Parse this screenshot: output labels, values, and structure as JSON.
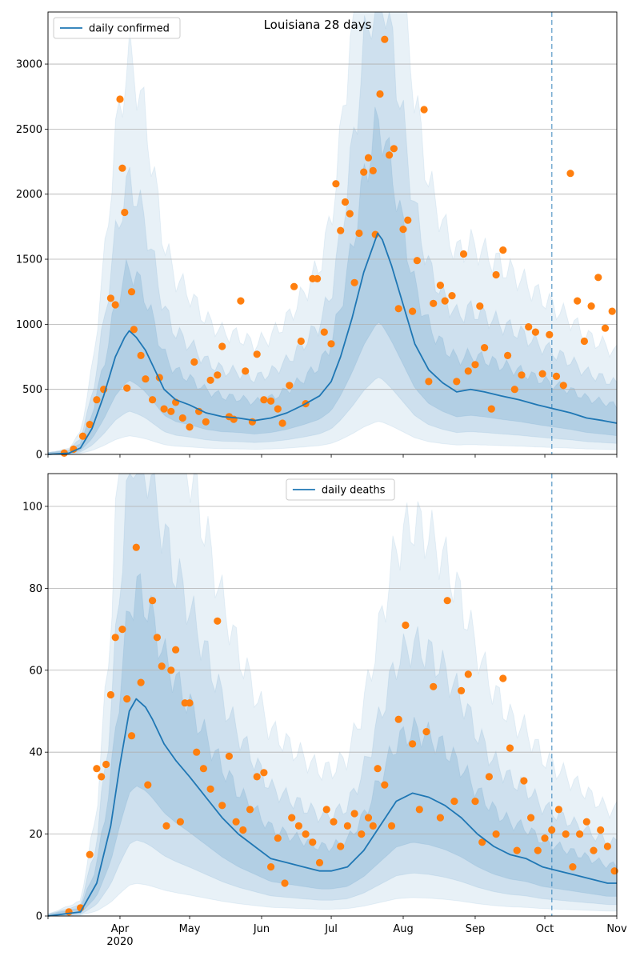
{
  "chart_data": [
    {
      "type": "line",
      "title": "Louisiana 28 days",
      "xlabel": "",
      "ylabel": "",
      "ylim": [
        0,
        3400
      ],
      "yticks": [
        0,
        500,
        1000,
        1500,
        2000,
        2500,
        3000
      ],
      "xlim": [
        "2020-03-01",
        "2020-11-01"
      ],
      "xtick_labels": [],
      "grid": "horizontal",
      "legend": {
        "placement": "top-left",
        "entries": [
          "daily confirmed"
        ]
      },
      "forecast_start": "2020-10-04",
      "colors": {
        "line": "#1f77b4",
        "points": "#ff7f0e",
        "band": "#1f77b4",
        "forecast_line": "#1f77b4"
      },
      "series": [
        {
          "name": "daily confirmed",
          "kind": "line",
          "x": [
            "2020-03-01",
            "2020-03-10",
            "2020-03-15",
            "2020-03-20",
            "2020-03-25",
            "2020-03-30",
            "2020-04-03",
            "2020-04-05",
            "2020-04-08",
            "2020-04-12",
            "2020-04-16",
            "2020-04-20",
            "2020-04-25",
            "2020-05-01",
            "2020-05-08",
            "2020-05-15",
            "2020-05-22",
            "2020-05-29",
            "2020-06-05",
            "2020-06-12",
            "2020-06-19",
            "2020-06-26",
            "2020-07-01",
            "2020-07-05",
            "2020-07-10",
            "2020-07-15",
            "2020-07-19",
            "2020-07-21",
            "2020-07-23",
            "2020-07-27",
            "2020-08-01",
            "2020-08-06",
            "2020-08-12",
            "2020-08-18",
            "2020-08-24",
            "2020-08-30",
            "2020-09-05",
            "2020-09-12",
            "2020-09-20",
            "2020-09-28",
            "2020-10-05",
            "2020-10-12",
            "2020-10-19",
            "2020-10-26",
            "2020-11-01"
          ],
          "y": [
            0,
            10,
            50,
            200,
            450,
            750,
            900,
            950,
            900,
            800,
            650,
            500,
            420,
            380,
            320,
            290,
            280,
            260,
            280,
            320,
            380,
            450,
            560,
            750,
            1050,
            1400,
            1600,
            1700,
            1650,
            1450,
            1150,
            850,
            650,
            550,
            480,
            500,
            480,
            450,
            420,
            380,
            350,
            320,
            280,
            260,
            240
          ]
        },
        {
          "name": "",
          "kind": "scatter",
          "x": [
            "2020-03-08",
            "2020-03-12",
            "2020-03-16",
            "2020-03-19",
            "2020-03-22",
            "2020-03-25",
            "2020-03-28",
            "2020-03-30",
            "2020-04-01",
            "2020-04-02",
            "2020-04-03",
            "2020-04-04",
            "2020-04-06",
            "2020-04-07",
            "2020-04-10",
            "2020-04-12",
            "2020-04-15",
            "2020-04-18",
            "2020-04-20",
            "2020-04-23",
            "2020-04-25",
            "2020-04-28",
            "2020-05-01",
            "2020-05-03",
            "2020-05-05",
            "2020-05-08",
            "2020-05-10",
            "2020-05-13",
            "2020-05-15",
            "2020-05-18",
            "2020-05-20",
            "2020-05-23",
            "2020-05-25",
            "2020-05-28",
            "2020-05-30",
            "2020-06-02",
            "2020-06-05",
            "2020-06-08",
            "2020-06-10",
            "2020-06-13",
            "2020-06-15",
            "2020-06-18",
            "2020-06-20",
            "2020-06-23",
            "2020-06-25",
            "2020-06-28",
            "2020-07-01",
            "2020-07-03",
            "2020-07-05",
            "2020-07-07",
            "2020-07-09",
            "2020-07-11",
            "2020-07-13",
            "2020-07-15",
            "2020-07-17",
            "2020-07-19",
            "2020-07-20",
            "2020-07-22",
            "2020-07-24",
            "2020-07-26",
            "2020-07-28",
            "2020-07-30",
            "2020-08-01",
            "2020-08-03",
            "2020-08-05",
            "2020-08-07",
            "2020-08-10",
            "2020-08-12",
            "2020-08-14",
            "2020-08-17",
            "2020-08-19",
            "2020-08-22",
            "2020-08-24",
            "2020-08-27",
            "2020-08-29",
            "2020-09-01",
            "2020-09-03",
            "2020-09-05",
            "2020-09-08",
            "2020-09-10",
            "2020-09-13",
            "2020-09-15",
            "2020-09-18",
            "2020-09-21",
            "2020-09-24",
            "2020-09-27",
            "2020-09-30",
            "2020-10-03",
            "2020-10-06",
            "2020-10-09",
            "2020-10-12",
            "2020-10-15",
            "2020-10-18",
            "2020-10-21",
            "2020-10-24",
            "2020-10-27",
            "2020-10-30"
          ],
          "y": [
            10,
            40,
            140,
            230,
            420,
            500,
            1200,
            1150,
            2730,
            2200,
            1860,
            510,
            1250,
            960,
            760,
            580,
            420,
            590,
            350,
            330,
            400,
            280,
            210,
            710,
            330,
            250,
            570,
            610,
            830,
            290,
            270,
            1180,
            640,
            250,
            770,
            420,
            410,
            350,
            240,
            530,
            1290,
            870,
            390,
            1350,
            1350,
            940,
            850,
            2080,
            1720,
            1940,
            1850,
            1320,
            1700,
            2170,
            2280,
            2180,
            1690,
            2770,
            3190,
            2300,
            2350,
            1120,
            1730,
            1800,
            1100,
            1490,
            2650,
            560,
            1160,
            1300,
            1180,
            1220,
            560,
            1540,
            640,
            690,
            1140,
            820,
            350,
            1380,
            1570,
            760,
            500,
            610,
            980,
            940,
            620,
            920,
            600,
            530,
            2160,
            1180,
            870,
            1140,
            1360,
            970,
            1100
          ]
        }
      ]
    },
    {
      "type": "line",
      "title": "",
      "xlabel": "",
      "ylabel": "",
      "ylim": [
        0,
        108
      ],
      "yticks": [
        0,
        20,
        40,
        60,
        80,
        100
      ],
      "xlim": [
        "2020-03-01",
        "2020-11-01"
      ],
      "xtick_labels": [
        "Apr\n2020",
        "May",
        "Jun",
        "Jul",
        "Aug",
        "Sep",
        "Oct",
        "Nov"
      ],
      "xtick_dates": [
        "2020-04-01",
        "2020-05-01",
        "2020-06-01",
        "2020-07-01",
        "2020-08-01",
        "2020-09-01",
        "2020-10-01",
        "2020-11-01"
      ],
      "grid": "horizontal",
      "legend": {
        "placement": "top-center",
        "entries": [
          "daily deaths"
        ]
      },
      "forecast_start": "2020-10-04",
      "colors": {
        "line": "#1f77b4",
        "points": "#ff7f0e",
        "band": "#1f77b4",
        "forecast_line": "#1f77b4"
      },
      "series": [
        {
          "name": "daily deaths",
          "kind": "line",
          "x": [
            "2020-03-01",
            "2020-03-15",
            "2020-03-22",
            "2020-03-28",
            "2020-04-01",
            "2020-04-05",
            "2020-04-08",
            "2020-04-12",
            "2020-04-15",
            "2020-04-20",
            "2020-04-25",
            "2020-05-01",
            "2020-05-08",
            "2020-05-15",
            "2020-05-22",
            "2020-05-29",
            "2020-06-05",
            "2020-06-12",
            "2020-06-19",
            "2020-06-26",
            "2020-07-01",
            "2020-07-08",
            "2020-07-15",
            "2020-07-22",
            "2020-07-29",
            "2020-08-05",
            "2020-08-12",
            "2020-08-19",
            "2020-08-26",
            "2020-09-02",
            "2020-09-09",
            "2020-09-16",
            "2020-09-23",
            "2020-09-30",
            "2020-10-07",
            "2020-10-14",
            "2020-10-21",
            "2020-10-28",
            "2020-11-01"
          ],
          "y": [
            0,
            1,
            8,
            22,
            37,
            50,
            53,
            51,
            48,
            42,
            38,
            34,
            29,
            24,
            20,
            17,
            14,
            13,
            12,
            11,
            11,
            12,
            16,
            22,
            28,
            30,
            29,
            27,
            24,
            20,
            17,
            15,
            14,
            12,
            11,
            10,
            9,
            8,
            8
          ]
        },
        {
          "name": "",
          "kind": "scatter",
          "x": [
            "2020-03-10",
            "2020-03-15",
            "2020-03-19",
            "2020-03-22",
            "2020-03-24",
            "2020-03-26",
            "2020-03-28",
            "2020-03-30",
            "2020-04-02",
            "2020-04-04",
            "2020-04-06",
            "2020-04-08",
            "2020-04-10",
            "2020-04-13",
            "2020-04-15",
            "2020-04-17",
            "2020-04-19",
            "2020-04-21",
            "2020-04-23",
            "2020-04-25",
            "2020-04-27",
            "2020-04-29",
            "2020-05-01",
            "2020-05-04",
            "2020-05-07",
            "2020-05-10",
            "2020-05-13",
            "2020-05-15",
            "2020-05-18",
            "2020-05-21",
            "2020-05-24",
            "2020-05-27",
            "2020-05-30",
            "2020-06-02",
            "2020-06-05",
            "2020-06-08",
            "2020-06-11",
            "2020-06-14",
            "2020-06-17",
            "2020-06-20",
            "2020-06-23",
            "2020-06-26",
            "2020-06-29",
            "2020-07-02",
            "2020-07-05",
            "2020-07-08",
            "2020-07-11",
            "2020-07-14",
            "2020-07-17",
            "2020-07-19",
            "2020-07-21",
            "2020-07-24",
            "2020-07-27",
            "2020-07-30",
            "2020-08-02",
            "2020-08-05",
            "2020-08-08",
            "2020-08-11",
            "2020-08-14",
            "2020-08-17",
            "2020-08-20",
            "2020-08-23",
            "2020-08-26",
            "2020-08-29",
            "2020-09-01",
            "2020-09-04",
            "2020-09-07",
            "2020-09-10",
            "2020-09-13",
            "2020-09-16",
            "2020-09-19",
            "2020-09-22",
            "2020-09-25",
            "2020-09-28",
            "2020-10-01",
            "2020-10-04",
            "2020-10-07",
            "2020-10-10",
            "2020-10-13",
            "2020-10-16",
            "2020-10-19",
            "2020-10-22",
            "2020-10-25",
            "2020-10-28",
            "2020-10-31"
          ],
          "y": [
            1,
            2,
            15,
            36,
            34,
            37,
            54,
            68,
            70,
            53,
            44,
            90,
            57,
            32,
            77,
            68,
            61,
            22,
            60,
            65,
            23,
            52,
            52,
            40,
            36,
            31,
            72,
            27,
            39,
            23,
            21,
            26,
            34,
            35,
            12,
            19,
            8,
            24,
            22,
            20,
            18,
            13,
            26,
            23,
            17,
            22,
            25,
            20,
            24,
            22,
            36,
            32,
            22,
            48,
            71,
            42,
            26,
            45,
            56,
            24,
            77,
            28,
            55,
            59,
            28,
            18,
            34,
            20,
            58,
            41,
            16,
            33,
            24,
            16,
            19,
            21,
            26,
            20,
            12,
            20,
            23,
            16,
            21,
            17,
            11
          ]
        }
      ]
    }
  ]
}
